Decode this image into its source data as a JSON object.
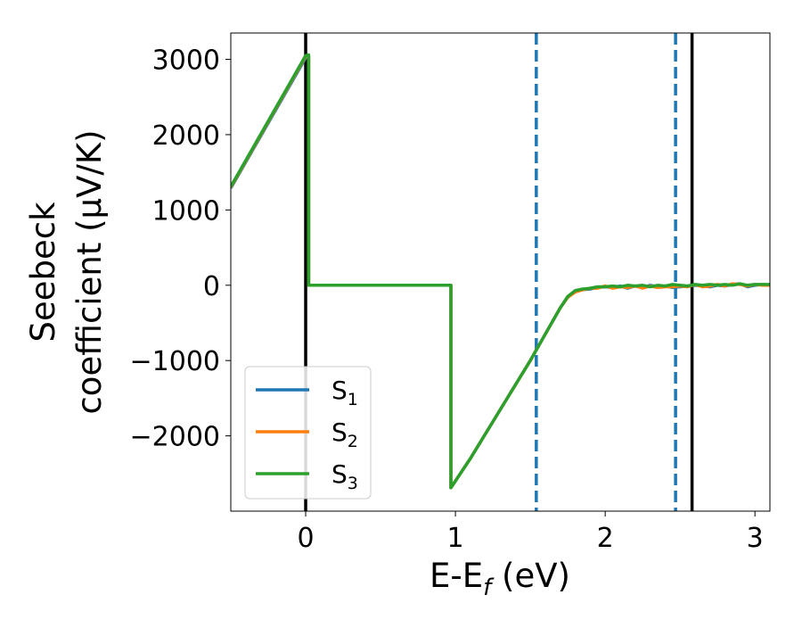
{
  "chart_data": {
    "type": "line",
    "title": "",
    "xlabel": "E-E",
    "xlabel_sub": "f",
    "xlabel_unit": " (eV)",
    "ylabel_line1": "Seebeck",
    "ylabel_line2": "coefficient  (μV/K)",
    "xlim": [
      -0.5,
      3.1
    ],
    "ylim": [
      -3000,
      3350
    ],
    "xticks": [
      0,
      1,
      2,
      3
    ],
    "yticks": [
      -2000,
      -1000,
      0,
      1000,
      2000,
      3000
    ],
    "ytick_labels": [
      "−2000",
      "−1000",
      "0",
      "1000",
      "2000",
      "3000"
    ],
    "legend_position": "lower-left",
    "vlines": [
      {
        "x": 0.0,
        "style": "solid",
        "color": "#000000"
      },
      {
        "x": 1.54,
        "style": "dashed",
        "color": "#1f77b4"
      },
      {
        "x": 2.47,
        "style": "dashed",
        "color": "#1f77b4"
      },
      {
        "x": 2.58,
        "style": "solid",
        "color": "#000000"
      }
    ],
    "series": [
      {
        "name": "S",
        "sub": "1",
        "color": "#1f77b4",
        "x": [
          -0.5,
          0.0,
          0.02,
          0.02,
          0.97,
          0.97,
          1.1,
          1.3,
          1.5,
          1.6,
          1.7,
          1.75,
          1.8,
          1.85,
          1.9,
          1.95,
          2.0,
          2.05,
          2.1,
          2.15,
          2.2,
          2.25,
          2.3,
          2.35,
          2.4,
          2.45,
          2.5,
          2.55,
          2.6,
          2.65,
          2.7,
          2.75,
          2.8,
          2.85,
          2.9,
          2.95,
          3.0,
          3.05,
          3.1
        ],
        "y": [
          1290,
          3020,
          3030,
          0,
          0,
          -2690,
          -2300,
          -1650,
          -1000,
          -650,
          -300,
          -160,
          -80,
          -60,
          -50,
          -30,
          -20,
          -30,
          -10,
          -40,
          -10,
          -30,
          0,
          -20,
          -10,
          -30,
          -20,
          -10,
          0,
          -10,
          -20,
          0,
          -10,
          10,
          20,
          -20,
          0,
          10,
          0
        ]
      },
      {
        "name": "S",
        "sub": "2",
        "color": "#ff7f0e",
        "x": [
          -0.5,
          0.0,
          0.02,
          0.02,
          0.97,
          0.97,
          1.1,
          1.3,
          1.5,
          1.6,
          1.7,
          1.75,
          1.8,
          1.85,
          1.9,
          1.95,
          2.0,
          2.05,
          2.1,
          2.15,
          2.2,
          2.25,
          2.3,
          2.35,
          2.4,
          2.45,
          2.5,
          2.55,
          2.6,
          2.65,
          2.7,
          2.75,
          2.8,
          2.85,
          2.9,
          2.95,
          3.0,
          3.05,
          3.1
        ],
        "y": [
          1300,
          3040,
          3050,
          0,
          0,
          -2690,
          -2300,
          -1650,
          -1000,
          -650,
          -300,
          -160,
          -90,
          -60,
          -40,
          -40,
          -10,
          -40,
          -20,
          -30,
          -10,
          -40,
          -10,
          -30,
          -20,
          -20,
          -10,
          -20,
          10,
          -20,
          -10,
          10,
          -10,
          20,
          10,
          -10,
          10,
          0,
          0
        ]
      },
      {
        "name": "S",
        "sub": "3",
        "color": "#2ca02c",
        "x": [
          -0.5,
          0.0,
          0.02,
          0.02,
          0.97,
          0.97,
          1.1,
          1.3,
          1.5,
          1.6,
          1.7,
          1.75,
          1.8,
          1.85,
          1.9,
          1.95,
          2.0,
          2.05,
          2.1,
          2.15,
          2.2,
          2.25,
          2.3,
          2.35,
          2.4,
          2.45,
          2.5,
          2.55,
          2.6,
          2.65,
          2.7,
          2.75,
          2.8,
          2.85,
          2.9,
          2.95,
          3.0,
          3.05,
          3.1
        ],
        "y": [
          1310,
          3050,
          3060,
          0,
          0,
          -2690,
          -2300,
          -1650,
          -1000,
          -650,
          -300,
          -150,
          -70,
          -50,
          -40,
          -20,
          -20,
          -10,
          -20,
          0,
          -10,
          0,
          -20,
          0,
          -10,
          10,
          0,
          -10,
          10,
          0,
          10,
          0,
          10,
          0,
          20,
          0,
          10,
          10,
          10
        ]
      }
    ]
  }
}
